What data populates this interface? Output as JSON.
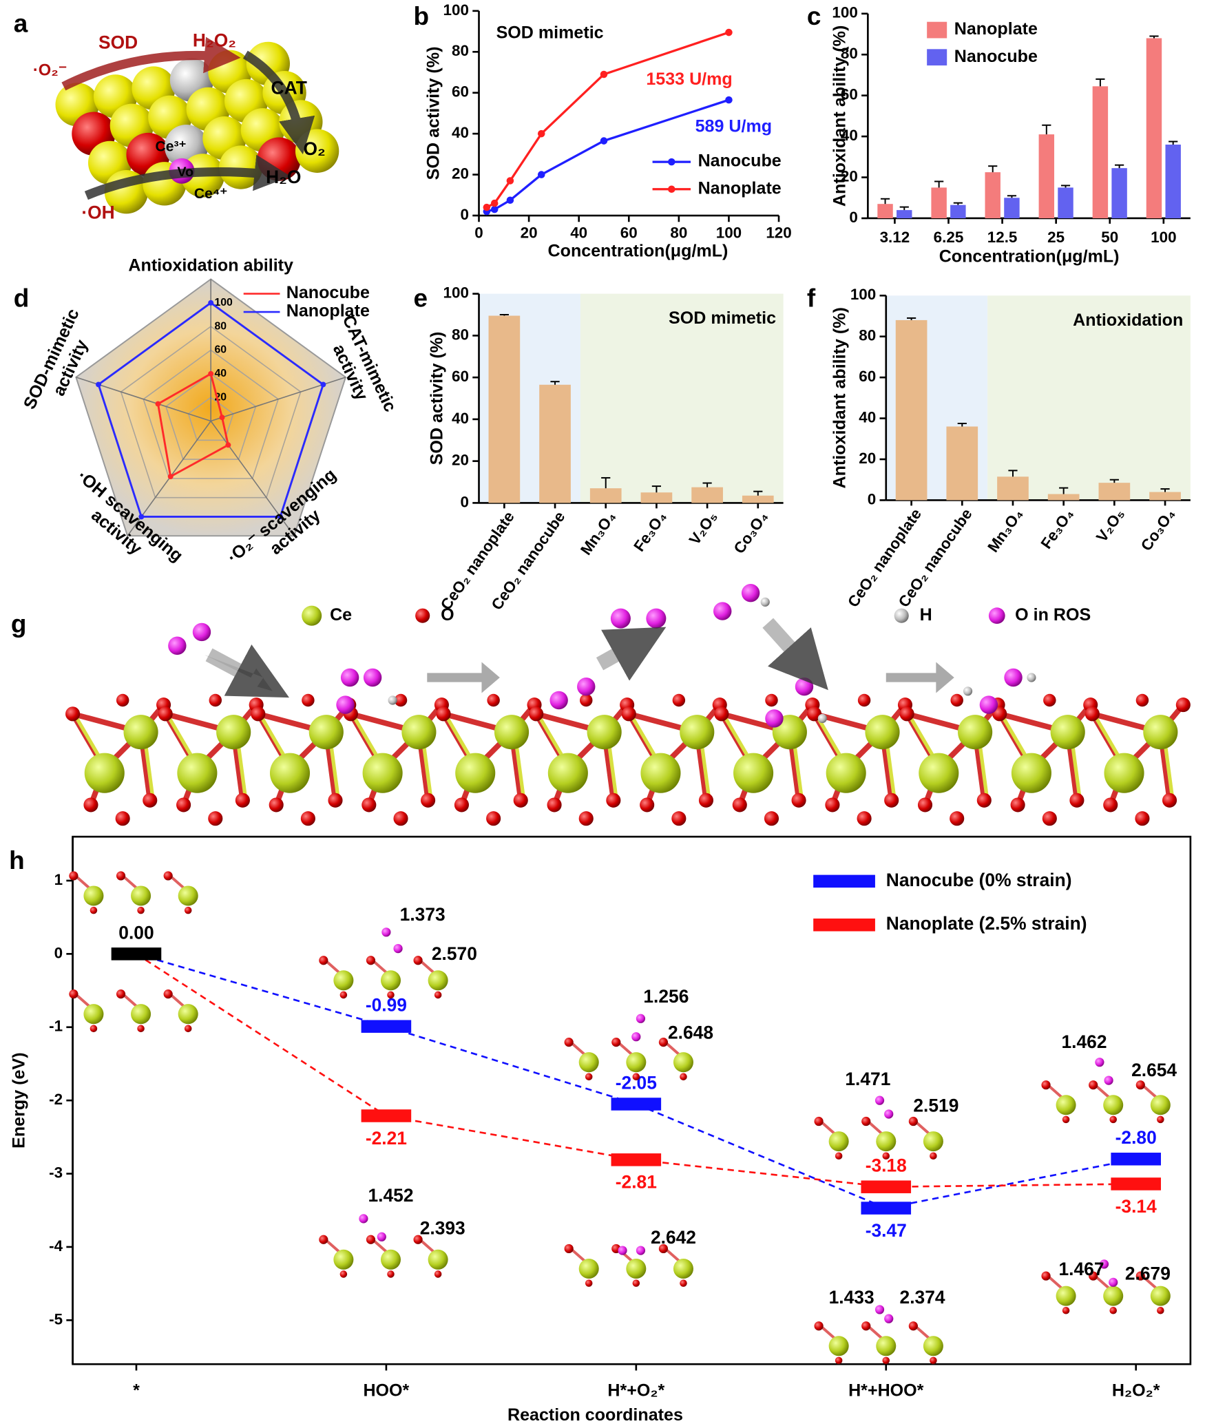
{
  "panel_labels": [
    "a",
    "b",
    "c",
    "d",
    "e",
    "f",
    "g",
    "h"
  ],
  "panel_a": {
    "labels": [
      "SOD",
      "H₂O₂",
      "·O₂⁻",
      "CAT",
      "Ce³⁺",
      "O₂",
      "Vo",
      "Ce⁴⁺",
      "H₂O",
      "·OH"
    ]
  },
  "panel_g": {
    "legend": [
      "Ce",
      "O",
      "H",
      "O in ROS"
    ]
  },
  "chart_data": [
    {
      "type": "line",
      "annotations": [
        "SOD mimetic",
        "1533 U/mg",
        "589 U/mg"
      ],
      "x_label": "Concentration(μg/mL)",
      "y_label": "SOD activity (%)",
      "x": [
        3.12,
        6.25,
        12.5,
        25,
        50,
        100
      ],
      "series": [
        {
          "name": "Nanocube",
          "color": "#1f1fff",
          "values": [
            2,
            3,
            7.5,
            20,
            36.5,
            56.5
          ]
        },
        {
          "name": "Nanoplate",
          "color": "#ff2020",
          "values": [
            4,
            6,
            17,
            40,
            69,
            89.5
          ]
        }
      ],
      "xlim": [
        0,
        120
      ],
      "xticks": [
        0,
        20,
        40,
        60,
        80,
        100,
        120
      ],
      "ylim": [
        0,
        100
      ],
      "yticks": [
        0,
        20,
        40,
        60,
        80,
        100
      ]
    },
    {
      "type": "bar",
      "x_label": "Concentration(μg/mL)",
      "y_label": "Antioxidant ability (%)",
      "categories": [
        "3.12",
        "6.25",
        "12.5",
        "25",
        "50",
        "100"
      ],
      "series": [
        {
          "name": "Nanoplate",
          "color": "#f47c7c",
          "values": [
            7,
            15,
            22.5,
            41,
            64.5,
            88
          ],
          "errors": [
            2.5,
            3,
            3,
            4.5,
            3.5,
            1
          ]
        },
        {
          "name": "Nanocube",
          "color": "#6262f0",
          "values": [
            4,
            6.5,
            10,
            15,
            24.5,
            36
          ],
          "errors": [
            1.5,
            1,
            1,
            1,
            1.5,
            1.5
          ]
        }
      ],
      "ylim": [
        0,
        100
      ],
      "yticks": [
        0,
        20,
        40,
        60,
        80,
        100
      ]
    },
    {
      "type": "radar",
      "axes": [
        [
          "Antioxidation ability"
        ],
        [
          "CAT-mimetic",
          "activity"
        ],
        [
          "·O₂⁻ scavenging",
          "activity"
        ],
        [
          "·OH scavenging",
          "activity"
        ],
        [
          "SOD-mimetic",
          "activity"
        ]
      ],
      "series": [
        {
          "name": "Nanocube",
          "color": "#ff2a2a",
          "values": [
            40,
            10,
            25,
            58,
            47
          ]
        },
        {
          "name": "Nanoplate",
          "color": "#2a2aff",
          "values": [
            100,
            100,
            100,
            100,
            100
          ]
        }
      ],
      "rlim": [
        0,
        120
      ],
      "rticks": [
        20,
        40,
        60,
        80,
        100
      ]
    },
    {
      "type": "bar",
      "annotations": [
        "SOD mimetic"
      ],
      "y_label": "SOD activity (%)",
      "categories": [
        "CeO₂ nanoplate",
        "CeO₂ nanocube",
        "Mn₃O₄",
        "Fe₃O₄",
        "V₂O₅",
        "Co₃O₄"
      ],
      "values": [
        89.5,
        56.5,
        7,
        5,
        7.5,
        3.5
      ],
      "errors": [
        0.5,
        1.5,
        5,
        3,
        2,
        2
      ],
      "color": "#e8b98a",
      "ylim": [
        0,
        100
      ],
      "yticks": [
        0,
        20,
        40,
        60,
        80,
        100
      ]
    },
    {
      "type": "bar",
      "annotations": [
        "Antioxidation"
      ],
      "y_label": "Antioxidant ability (%)",
      "categories": [
        "CeO₂ nanoplate",
        "CeO₂ nanocube",
        "Mn₃O₄",
        "Fe₃O₄",
        "V₂O₅",
        "Co₃O₄"
      ],
      "values": [
        88,
        36,
        11.5,
        3,
        8.5,
        4
      ],
      "errors": [
        1,
        1.5,
        3,
        3,
        1.5,
        1.5
      ],
      "color": "#e8b98a",
      "ylim": [
        0,
        100
      ],
      "yticks": [
        0,
        20,
        40,
        60,
        80,
        100
      ]
    },
    {
      "type": "energy",
      "x_label": "Reaction coordinates",
      "y_label": "Energy (eV)",
      "categories": [
        "*",
        "HOO*",
        "H*+O₂*",
        "H*+HOO*",
        "H₂O₂*"
      ],
      "initial_color": "#000000",
      "series": [
        {
          "name": "Nanocube (0% strain)",
          "color": "#1010ff",
          "values": [
            0,
            -0.99,
            -2.05,
            -3.47,
            -2.8
          ],
          "value_labels": [
            "0.00",
            "-0.99",
            "-2.05",
            "-3.47",
            "-2.80"
          ]
        },
        {
          "name": "Nanoplate (2.5% strain)",
          "color": "#ff1010",
          "values": [
            0,
            -2.21,
            -2.81,
            -3.18,
            -3.14
          ],
          "value_labels": [
            null,
            "-2.21",
            "-2.81",
            "-3.18",
            "-3.14"
          ]
        }
      ],
      "annotations": [
        "1.373",
        "2.570",
        "1.452",
        "2.393",
        "1.256",
        "2.648",
        "2.642",
        "1.471",
        "2.519",
        "1.433",
        "2.374",
        "1.462",
        "2.654",
        "1.467",
        "2.679"
      ],
      "ylim": [
        -5.6,
        1.6
      ],
      "yticks": [
        -5,
        -4,
        -3,
        -2,
        -1,
        0,
        1
      ]
    }
  ]
}
